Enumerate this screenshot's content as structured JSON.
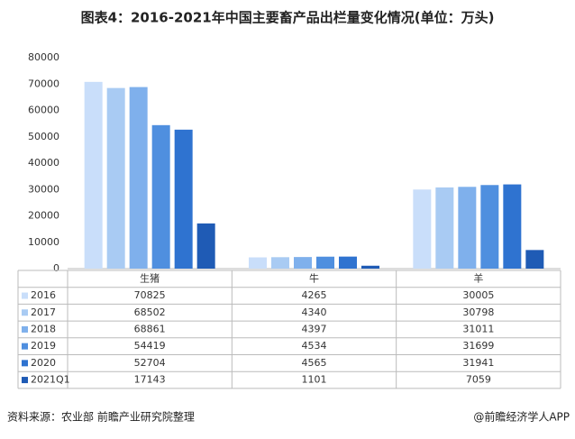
{
  "chart_data": {
    "type": "bar",
    "title": "图表4：2016-2021年中国主要畜产品出栏量变化情况(单位：万头)",
    "source": "资料来源：农业部 前瞻产业研究院整理",
    "watermark": "@前瞻经济学人APP",
    "categories": [
      "生猪",
      "牛",
      "羊"
    ],
    "series": [
      {
        "name": "2016",
        "color": "#c9defa",
        "values": [
          70825,
          4265,
          30005
        ]
      },
      {
        "name": "2017",
        "color": "#a9cbf3",
        "values": [
          68502,
          4340,
          30798
        ]
      },
      {
        "name": "2018",
        "color": "#7fb0ec",
        "values": [
          68861,
          4397,
          31011
        ]
      },
      {
        "name": "2019",
        "color": "#4f8fdf",
        "values": [
          54419,
          4534,
          31699
        ]
      },
      {
        "name": "2020",
        "color": "#2f73d0",
        "values": [
          52704,
          4565,
          31941
        ]
      },
      {
        "name": "2021Q1",
        "color": "#1f5bb5",
        "values": [
          17143,
          1101,
          7059
        ]
      }
    ],
    "ylim": [
      0,
      80000
    ],
    "yticks": [
      0,
      10000,
      20000,
      30000,
      40000,
      50000,
      60000,
      70000,
      80000
    ]
  }
}
